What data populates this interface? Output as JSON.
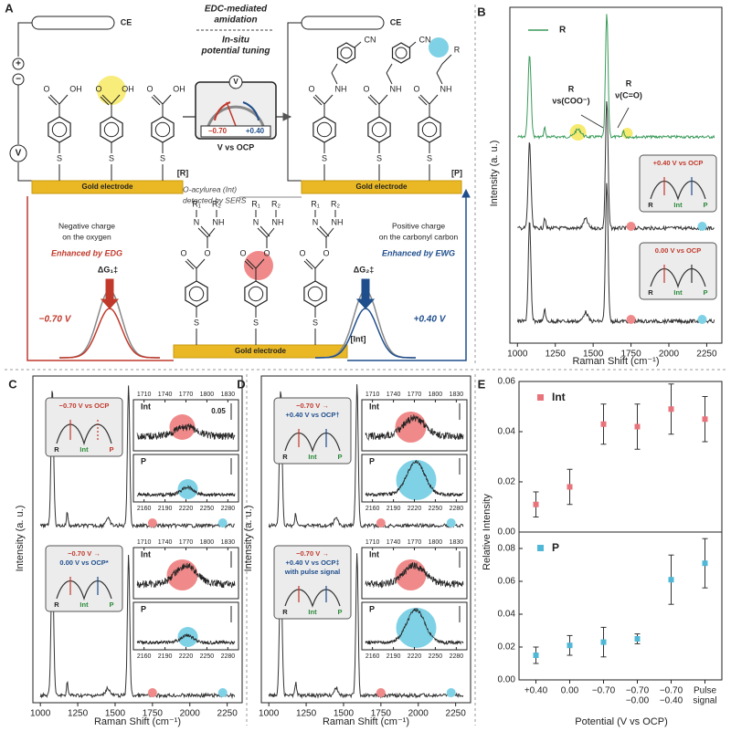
{
  "panel_a": {
    "label": "A",
    "ce": "CE",
    "edc": [
      "EDC-mediated",
      "amidation"
    ],
    "tuning": [
      "In-situ",
      "potential tuning"
    ],
    "meter_v": "V",
    "meter_neg": "−0.70",
    "meter_pos": "+0.40",
    "meter_unit": "V vs OCP",
    "source_plus": "+",
    "source_minus": "−",
    "source_v": "V",
    "r_label": "[R]",
    "p_label": "[P]",
    "int_label": "[Int]",
    "electrode": "Gold electrode",
    "left_note": [
      "Negative charge",
      "on the oxygen"
    ],
    "left_enh": "Enhanced by EDG",
    "dg1": "ΔG₁‡",
    "v_left": "−0.70 V",
    "int_note": [
      "O-acylurea (Int)",
      "detected by SERS"
    ],
    "right_note": [
      "Positive charge",
      "on the carbonyl carbon"
    ],
    "right_enh": "Enhanced by EWG",
    "dg2": "ΔG₂‡",
    "v_right": "+0.40 V",
    "atoms": {
      "o": "O",
      "oh": "OH",
      "s": "S",
      "nh": "NH",
      "cn": "CN",
      "r": "R",
      "n": "N",
      "r1": "R₁",
      "r2": "R₂"
    }
  },
  "panel_b": {
    "label": "B",
    "legend": "R",
    "peak1": [
      "R",
      "νs(COO⁻)"
    ],
    "peak2": [
      "R",
      "ν(C=O)"
    ],
    "inset1": "+0.40 V vs OCP",
    "inset2": "0.00 V vs OCP",
    "states": [
      "R",
      "Int",
      "P"
    ],
    "ylabel": "Intensity (a. u.)",
    "xlabel": "Raman Shift (cm⁻¹)",
    "xlim": [
      950,
      2350
    ],
    "xticks": [
      1000,
      1250,
      1500,
      1750,
      2000,
      2250
    ]
  },
  "panel_c": {
    "label": "C",
    "inset1": [
      "−0.70 V vs OCP"
    ],
    "inset2": [
      "−0.70 V →",
      "0.00 V vs OCP*"
    ],
    "states": [
      "R",
      "Int",
      "P"
    ],
    "int": "Int",
    "p": "P",
    "scale": "0.05",
    "int_xticks": [
      1710,
      1740,
      1770,
      1800,
      1830
    ],
    "p_xticks": [
      2160,
      2190,
      2220,
      2250,
      2280
    ],
    "ylabel": "Intensity (a. u.)",
    "xlabel": "Raman Shift (cm⁻¹)",
    "xlim": [
      950,
      2350
    ],
    "xticks": [
      1000,
      1250,
      1500,
      1750,
      2000,
      2250
    ]
  },
  "panel_d": {
    "label": "D",
    "inset1": [
      "−0.70 V →",
      "+0.40 V vs OCP†"
    ],
    "inset2": [
      "−0.70 V →",
      "+0.40 V vs OCP‡",
      "with pulse signal"
    ],
    "states": [
      "R",
      "Int",
      "P"
    ],
    "int": "Int",
    "p": "P",
    "int_xticks": [
      1710,
      1740,
      1770,
      1800,
      1830
    ],
    "p_xticks": [
      2160,
      2190,
      2220,
      2250,
      2280
    ],
    "ylabel": "Intensity (a. u.)",
    "xlabel": "Raman Shift (cm⁻¹)",
    "xlim": [
      950,
      2350
    ],
    "xticks": [
      1000,
      1250,
      1500,
      1750,
      2000,
      2250
    ]
  },
  "panel_e": {
    "label": "E"
  },
  "chart_data": [
    {
      "type": "scatter",
      "ylabel": "Relative Intensity",
      "series": [
        {
          "name": "Int",
          "color": "#e8737a",
          "values": [
            0.011,
            0.018,
            0.043,
            0.042,
            0.049,
            0.045
          ],
          "errors": [
            0.005,
            0.007,
            0.008,
            0.009,
            0.01,
            0.009
          ]
        }
      ],
      "ylim": [
        0,
        0.06
      ],
      "yticks": [
        {
          "value": 0,
          "label": "0.00"
        },
        {
          "value": 0.02,
          "label": "0.02"
        },
        {
          "value": 0.04,
          "label": "0.04"
        },
        {
          "value": 0.06,
          "label": "0.06"
        }
      ]
    },
    {
      "type": "scatter",
      "xlabel": "Potential (V vs OCP)",
      "categories": [
        [
          "+0.40"
        ],
        [
          "0.00"
        ],
        [
          "−0.70"
        ],
        [
          "−0.70",
          "−0.00"
        ],
        [
          "−0.70",
          "−0.40"
        ],
        [
          "Pulse",
          "signal"
        ]
      ],
      "series": [
        {
          "name": "P",
          "color": "#4fb8d6",
          "values": [
            0.015,
            0.021,
            0.023,
            0.025,
            0.061,
            0.071
          ],
          "errors": [
            0.005,
            0.006,
            0.009,
            0.003,
            0.015,
            0.015
          ]
        }
      ],
      "ylim": [
        0,
        0.09
      ],
      "yticks": [
        {
          "value": 0,
          "label": "0.00"
        },
        {
          "value": 0.02,
          "label": "0.02"
        },
        {
          "value": 0.04,
          "label": "0.04"
        },
        {
          "value": 0.06,
          "label": "0.06"
        },
        {
          "value": 0.08,
          "label": "0.08"
        }
      ]
    }
  ]
}
